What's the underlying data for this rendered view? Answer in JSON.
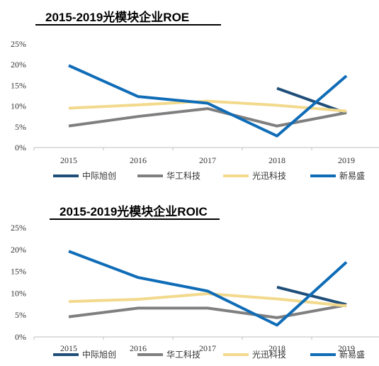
{
  "chart_data": [
    {
      "type": "line",
      "title": "2015-2019光模块企业ROE",
      "categories": [
        "2015",
        "2016",
        "2017",
        "2018",
        "2019"
      ],
      "yticks": [
        "0%",
        "5%",
        "10%",
        "15%",
        "20%",
        "25%"
      ],
      "ylim": [
        0,
        25
      ],
      "grid": false,
      "legend_position": "bottom",
      "series": [
        {
          "name": "中际旭创",
          "color": "#1f4e79",
          "values": [
            null,
            null,
            null,
            14.3,
            8.3
          ]
        },
        {
          "name": "华工科技",
          "color": "#7f7f7f",
          "values": [
            5.2,
            7.5,
            9.4,
            5.2,
            8.4
          ]
        },
        {
          "name": "光迅科技",
          "color": "#f2d98c",
          "values": [
            9.5,
            10.3,
            11.2,
            10.2,
            8.8
          ]
        },
        {
          "name": "新易盛",
          "color": "#0f6cb7",
          "values": [
            19.8,
            12.3,
            10.7,
            2.8,
            17.3
          ]
        }
      ]
    },
    {
      "type": "line",
      "title": "2015-2019光模块企业ROIC",
      "categories": [
        "2015",
        "2016",
        "2017",
        "2018",
        "2019"
      ],
      "yticks": [
        "0%",
        "5%",
        "10%",
        "15%",
        "20%",
        "25%"
      ],
      "ylim": [
        0,
        25
      ],
      "grid": false,
      "legend_position": "bottom",
      "series": [
        {
          "name": "中际旭创",
          "color": "#1f4e79",
          "values": [
            null,
            null,
            null,
            11.4,
            7.4
          ]
        },
        {
          "name": "华工科技",
          "color": "#7f7f7f",
          "values": [
            4.6,
            6.6,
            6.6,
            4.4,
            7.3
          ]
        },
        {
          "name": "光迅科技",
          "color": "#f2d98c",
          "values": [
            8.1,
            8.6,
            9.9,
            8.7,
            7.1
          ]
        },
        {
          "name": "新易盛",
          "color": "#0f6cb7",
          "values": [
            19.6,
            13.6,
            10.5,
            2.7,
            17.1
          ]
        }
      ]
    }
  ]
}
